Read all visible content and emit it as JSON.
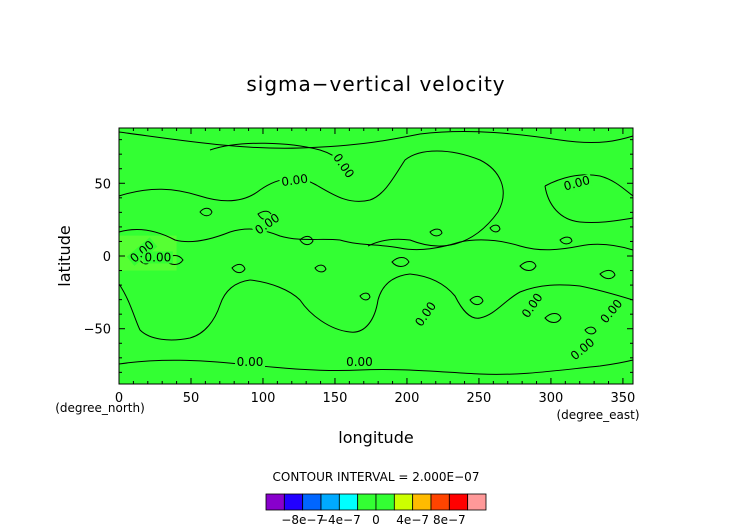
{
  "chart_data": {
    "type": "heatmap",
    "title": "sigma−vertical velocity",
    "xlabel": "longitude",
    "ylabel": "latitude",
    "x_unit": "(degree_east)",
    "y_unit": "(degree_north)",
    "xlim": [
      0,
      357
    ],
    "ylim": [
      -88,
      88
    ],
    "x_ticks": [
      0,
      50,
      100,
      150,
      200,
      250,
      300,
      350
    ],
    "y_ticks": [
      50,
      0,
      -50
    ],
    "x_tick_labels": [
      "0",
      "50",
      "100",
      "150",
      "200",
      "250",
      "300",
      "350"
    ],
    "y_tick_labels": [
      "50",
      "0",
      "−50"
    ],
    "field_color": "#33ff33",
    "highlight_color": "#99ff33",
    "contour_color": "#000000",
    "contour_labels": [
      {
        "text": "0.00",
        "lon": 103,
        "lat": 22,
        "angle": -35
      },
      {
        "text": "0.00",
        "lon": 122,
        "lat": 52,
        "angle": -8
      },
      {
        "text": "0.00",
        "lon": 156,
        "lat": 62,
        "angle": 55
      },
      {
        "text": "0.00",
        "lon": 16,
        "lat": 3,
        "angle": -40
      },
      {
        "text": "0.00",
        "lon": 91,
        "lat": -73,
        "angle": 0
      },
      {
        "text": "0.00",
        "lon": 167,
        "lat": -73,
        "angle": 0
      },
      {
        "text": "0.00",
        "lon": 213,
        "lat": -40,
        "angle": -55
      },
      {
        "text": "0.00",
        "lon": 287,
        "lat": -34,
        "angle": -55
      },
      {
        "text": "0.00",
        "lon": 342,
        "lat": -38,
        "angle": -50
      },
      {
        "text": "0.00",
        "lon": 322,
        "lat": -64,
        "angle": -40
      },
      {
        "text": "0.00",
        "lon": 318,
        "lat": 50,
        "angle": -15
      },
      {
        "text": "0.00",
        "lon": 27,
        "lat": -1,
        "angle": 0
      }
    ],
    "contour_interval_text": "CONTOUR INTERVAL = 2.000E−07",
    "colorbar": {
      "colors": [
        "#8800cc",
        "#2200ff",
        "#0066ff",
        "#00aaff",
        "#00ffff",
        "#33ff33",
        "#33ff33",
        "#ccff00",
        "#ffbb00",
        "#ff4400",
        "#ff0000",
        "#ff9999"
      ],
      "labels": [
        "−8e−7",
        "−4e−7",
        "0",
        "4e−7",
        "8e−7"
      ],
      "label_values": [
        -8e-07,
        -4e-07,
        0,
        4e-07,
        8e-07
      ],
      "range": [
        -1.2e-06,
        1.2e-06
      ]
    }
  }
}
